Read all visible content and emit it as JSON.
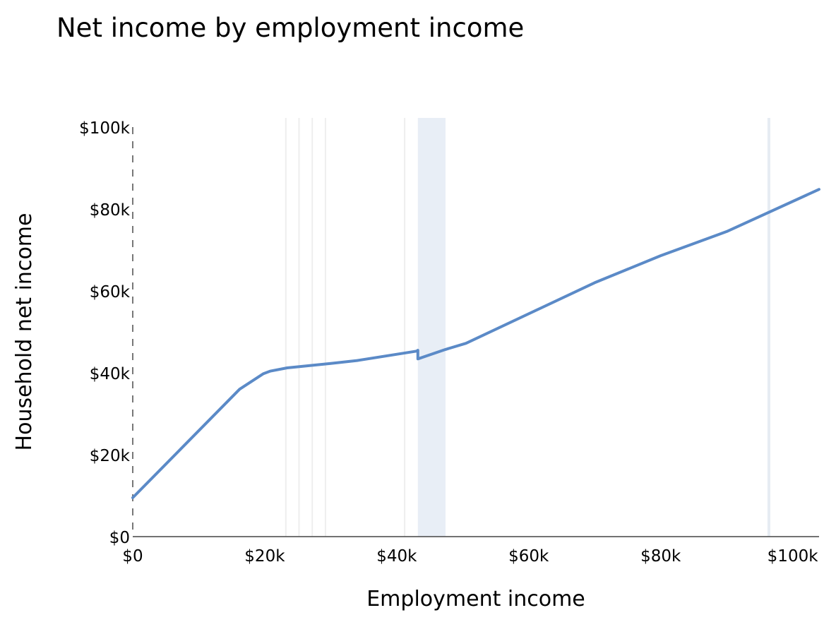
{
  "chart_data": {
    "type": "line",
    "title": "Net income by employment income",
    "xlabel": "Employment income",
    "ylabel": "Household net income",
    "xlim": [
      0,
      104000
    ],
    "ylim": [
      0,
      100000
    ],
    "x_ticks": [
      0,
      20000,
      40000,
      60000,
      80000,
      100000
    ],
    "x_tick_labels": [
      "$0",
      "$20k",
      "$40k",
      "$60k",
      "$80k",
      "$100k"
    ],
    "y_ticks": [
      0,
      20000,
      40000,
      60000,
      80000,
      100000
    ],
    "y_tick_labels": [
      "$0",
      "$20k",
      "$40k",
      "$60k",
      "$80k",
      "$100k"
    ],
    "grid": false,
    "line_color": "#5b8ac7",
    "band_color": "#e8eef6",
    "vline_color": "#eeeeee",
    "vline_color_blue": "#e6ecf3",
    "series": [
      {
        "x": [
          0,
          16200,
          19800,
          20800,
          23400,
          30000,
          34000,
          43000,
          43200,
          43200,
          47400,
          50500,
          70000,
          80000,
          90000,
          104000
        ],
        "y": [
          9500,
          36000,
          39800,
          40400,
          41200,
          42300,
          43000,
          45300,
          45500,
          43400,
          45700,
          47200,
          62000,
          68600,
          74500,
          84800
        ]
      }
    ],
    "vertical_lines": [
      23200,
      25200,
      27200,
      29200,
      41200
    ],
    "shaded_band": [
      43200,
      47400
    ],
    "blue_vertical_line": 96400
  }
}
